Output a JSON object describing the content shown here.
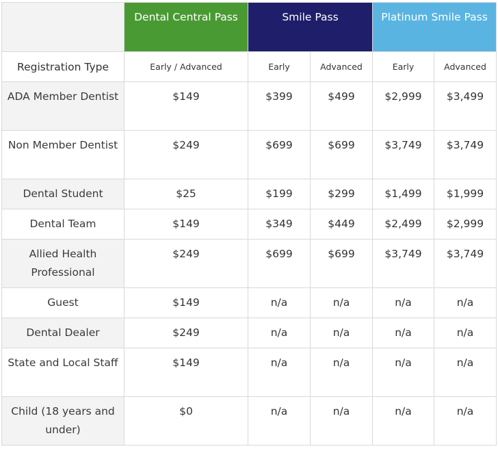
{
  "header": {
    "passes": [
      {
        "label": "Dental Central Pass",
        "color": "#4a9a34"
      },
      {
        "label": "Smile Pass",
        "color": "#1e1e6a"
      },
      {
        "label": "Platinum Smile Pass",
        "color": "#59b4e2"
      }
    ],
    "registration_type_label": "Registration Type",
    "subheaders": [
      "Early / Advanced",
      "Early",
      "Advanced",
      "Early",
      "Advanced"
    ]
  },
  "rows": [
    {
      "label": "ADA Member Dentist",
      "values": [
        "$149",
        "$399",
        "$499",
        "$2,999",
        "$3,499"
      ]
    },
    {
      "label": "Non Member Dentist",
      "values": [
        "$249",
        "$699",
        "$699",
        "$3,749",
        "$3,749"
      ]
    },
    {
      "label": "Dental Student",
      "values": [
        "$25",
        "$199",
        "$299",
        "$1,499",
        "$1,999"
      ]
    },
    {
      "label": "Dental Team",
      "values": [
        "$149",
        "$349",
        "$449",
        "$2,499",
        "$2,999"
      ]
    },
    {
      "label": "Allied Health Professional",
      "values": [
        "$249",
        "$699",
        "$699",
        "$3,749",
        "$3,749"
      ]
    },
    {
      "label": "Guest",
      "values": [
        "$149",
        "n/a",
        "n/a",
        "n/a",
        "n/a"
      ]
    },
    {
      "label": "Dental Dealer",
      "values": [
        "$249",
        "n/a",
        "n/a",
        "n/a",
        "n/a"
      ]
    },
    {
      "label": "State and Local Staff",
      "values": [
        "$149",
        "n/a",
        "n/a",
        "n/a",
        "n/a"
      ]
    },
    {
      "label": "Child (18 years and under)",
      "values": [
        "$0",
        "n/a",
        "n/a",
        "n/a",
        "n/a"
      ]
    }
  ]
}
